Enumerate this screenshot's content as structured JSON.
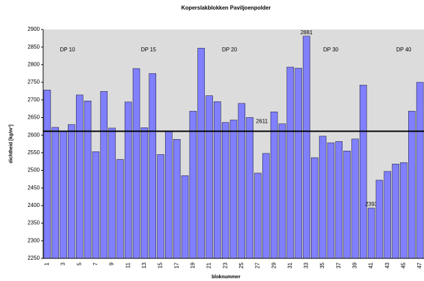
{
  "chart_data": {
    "type": "bar",
    "title": "Koperslakblokken Paviljoenpolder",
    "x_label": "bloknummer",
    "y_label": "dichtheid [kg/m³]",
    "categories": [
      "1",
      null,
      "3",
      null,
      "5",
      null,
      "7",
      null,
      "9",
      null,
      "11",
      null,
      "13",
      null,
      "15",
      null,
      "17",
      null,
      "19",
      null,
      "21",
      null,
      "23",
      null,
      "25",
      null,
      "27",
      null,
      "29",
      null,
      "31",
      null,
      "33",
      null,
      "35",
      null,
      "37",
      null,
      "39",
      null,
      "41",
      null,
      "43",
      null,
      "45",
      null,
      "47"
    ],
    "values": [
      2728,
      2622,
      2612,
      2630,
      2714,
      2697,
      2553,
      2724,
      2620,
      2531,
      2694,
      2789,
      2621,
      2775,
      2545,
      2610,
      2588,
      2485,
      2668,
      2847,
      2712,
      2695,
      2636,
      2643,
      2690,
      2650,
      2492,
      2548,
      2666,
      2632,
      2793,
      2790,
      2881,
      2536,
      2597,
      2578,
      2582,
      2555,
      2589,
      2742,
      2393,
      2472,
      2497,
      2518,
      2522,
      2668,
      2750
    ],
    "value_labels": [
      null,
      null,
      null,
      null,
      null,
      null,
      null,
      null,
      null,
      null,
      null,
      null,
      null,
      null,
      null,
      null,
      null,
      null,
      null,
      null,
      null,
      null,
      null,
      null,
      null,
      null,
      null,
      null,
      null,
      null,
      null,
      null,
      "2881",
      null,
      null,
      null,
      null,
      null,
      null,
      null,
      "2393",
      null,
      null,
      null,
      null,
      null,
      null
    ],
    "color": "#8080ff",
    "reference_line": 2611,
    "annotations": [
      "DP 10",
      "DP 15",
      "DP 20",
      "DP 30",
      "DP 40"
    ],
    "ylim": [
      2250,
      2900
    ],
    "yticks": [
      2250,
      2300,
      2350,
      2400,
      2450,
      2500,
      2550,
      2600,
      2650,
      2700,
      2750,
      2800,
      2850,
      2900
    ],
    "grid": false
  }
}
